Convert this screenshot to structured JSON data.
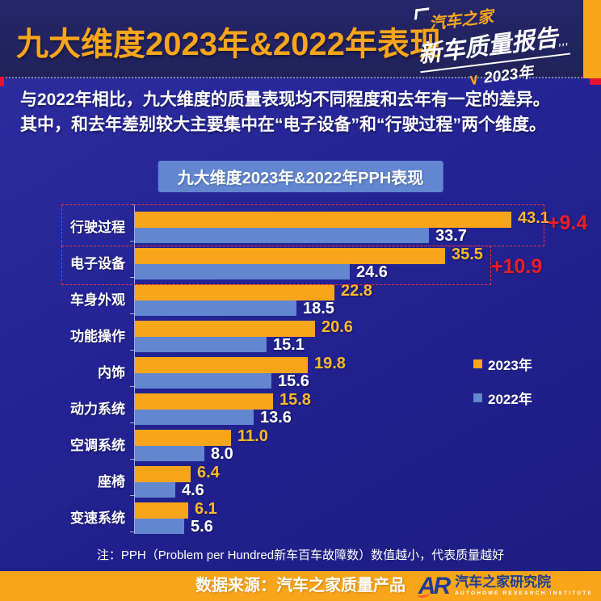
{
  "header": {
    "title": "九大维度2023年&2022年表现",
    "logo": {
      "brand": "汽车之家",
      "report": "新车质量报告",
      "ticks": "‚‚‚",
      "check": "∨",
      "year": "2023年"
    }
  },
  "intro": {
    "line1": "与2022年相比，九大维度的质量表现均不同程度和去年有一定的差异。",
    "line2": "其中，和去年差别较大主要集中在“电子设备”和“行驶过程”两个维度。"
  },
  "chart_data": {
    "type": "bar",
    "orientation": "horizontal",
    "title": "九大维度2023年&2022年PPH表现",
    "categories": [
      "行驶过程",
      "电子设备",
      "车身外观",
      "功能操作",
      "内饰",
      "动力系统",
      "空调系统",
      "座椅",
      "变速系统"
    ],
    "series": [
      {
        "name": "2023年",
        "color": "#f9a51a",
        "value_label_color": "#fdb927",
        "values": [
          43.1,
          35.5,
          22.8,
          20.6,
          19.8,
          15.8,
          11.0,
          6.4,
          6.1
        ]
      },
      {
        "name": "2022年",
        "color": "#6286d0",
        "value_label_color": "#ffffff",
        "values": [
          33.7,
          24.6,
          18.5,
          15.1,
          15.6,
          13.6,
          8.0,
          4.6,
          5.6
        ]
      }
    ],
    "xlim": [
      0,
      45
    ],
    "grid": false,
    "legend_position": "right-middle",
    "highlights": [
      {
        "category": "行驶过程",
        "diff": "+9.4"
      },
      {
        "category": "电子设备",
        "diff": "+10.9"
      }
    ],
    "highlight_color": "#ee1c25"
  },
  "note": "注：PPH（Problem per Hundred新车百车故障数）数值越小，代表质量越好",
  "footer": {
    "source": "数据来源：汽车之家质量产品",
    "logo": {
      "initials": "AR",
      "name_cn": "汽车之家研究院",
      "name_en": "AUTOHOME RESEARCH INSTITUTE"
    }
  },
  "colors": {
    "accent_orange": "#f9a51a",
    "bar_blue": "#6286d0",
    "highlight_red": "#ee1c25",
    "background_blue": "#232394",
    "header_navy": "#23235f"
  }
}
